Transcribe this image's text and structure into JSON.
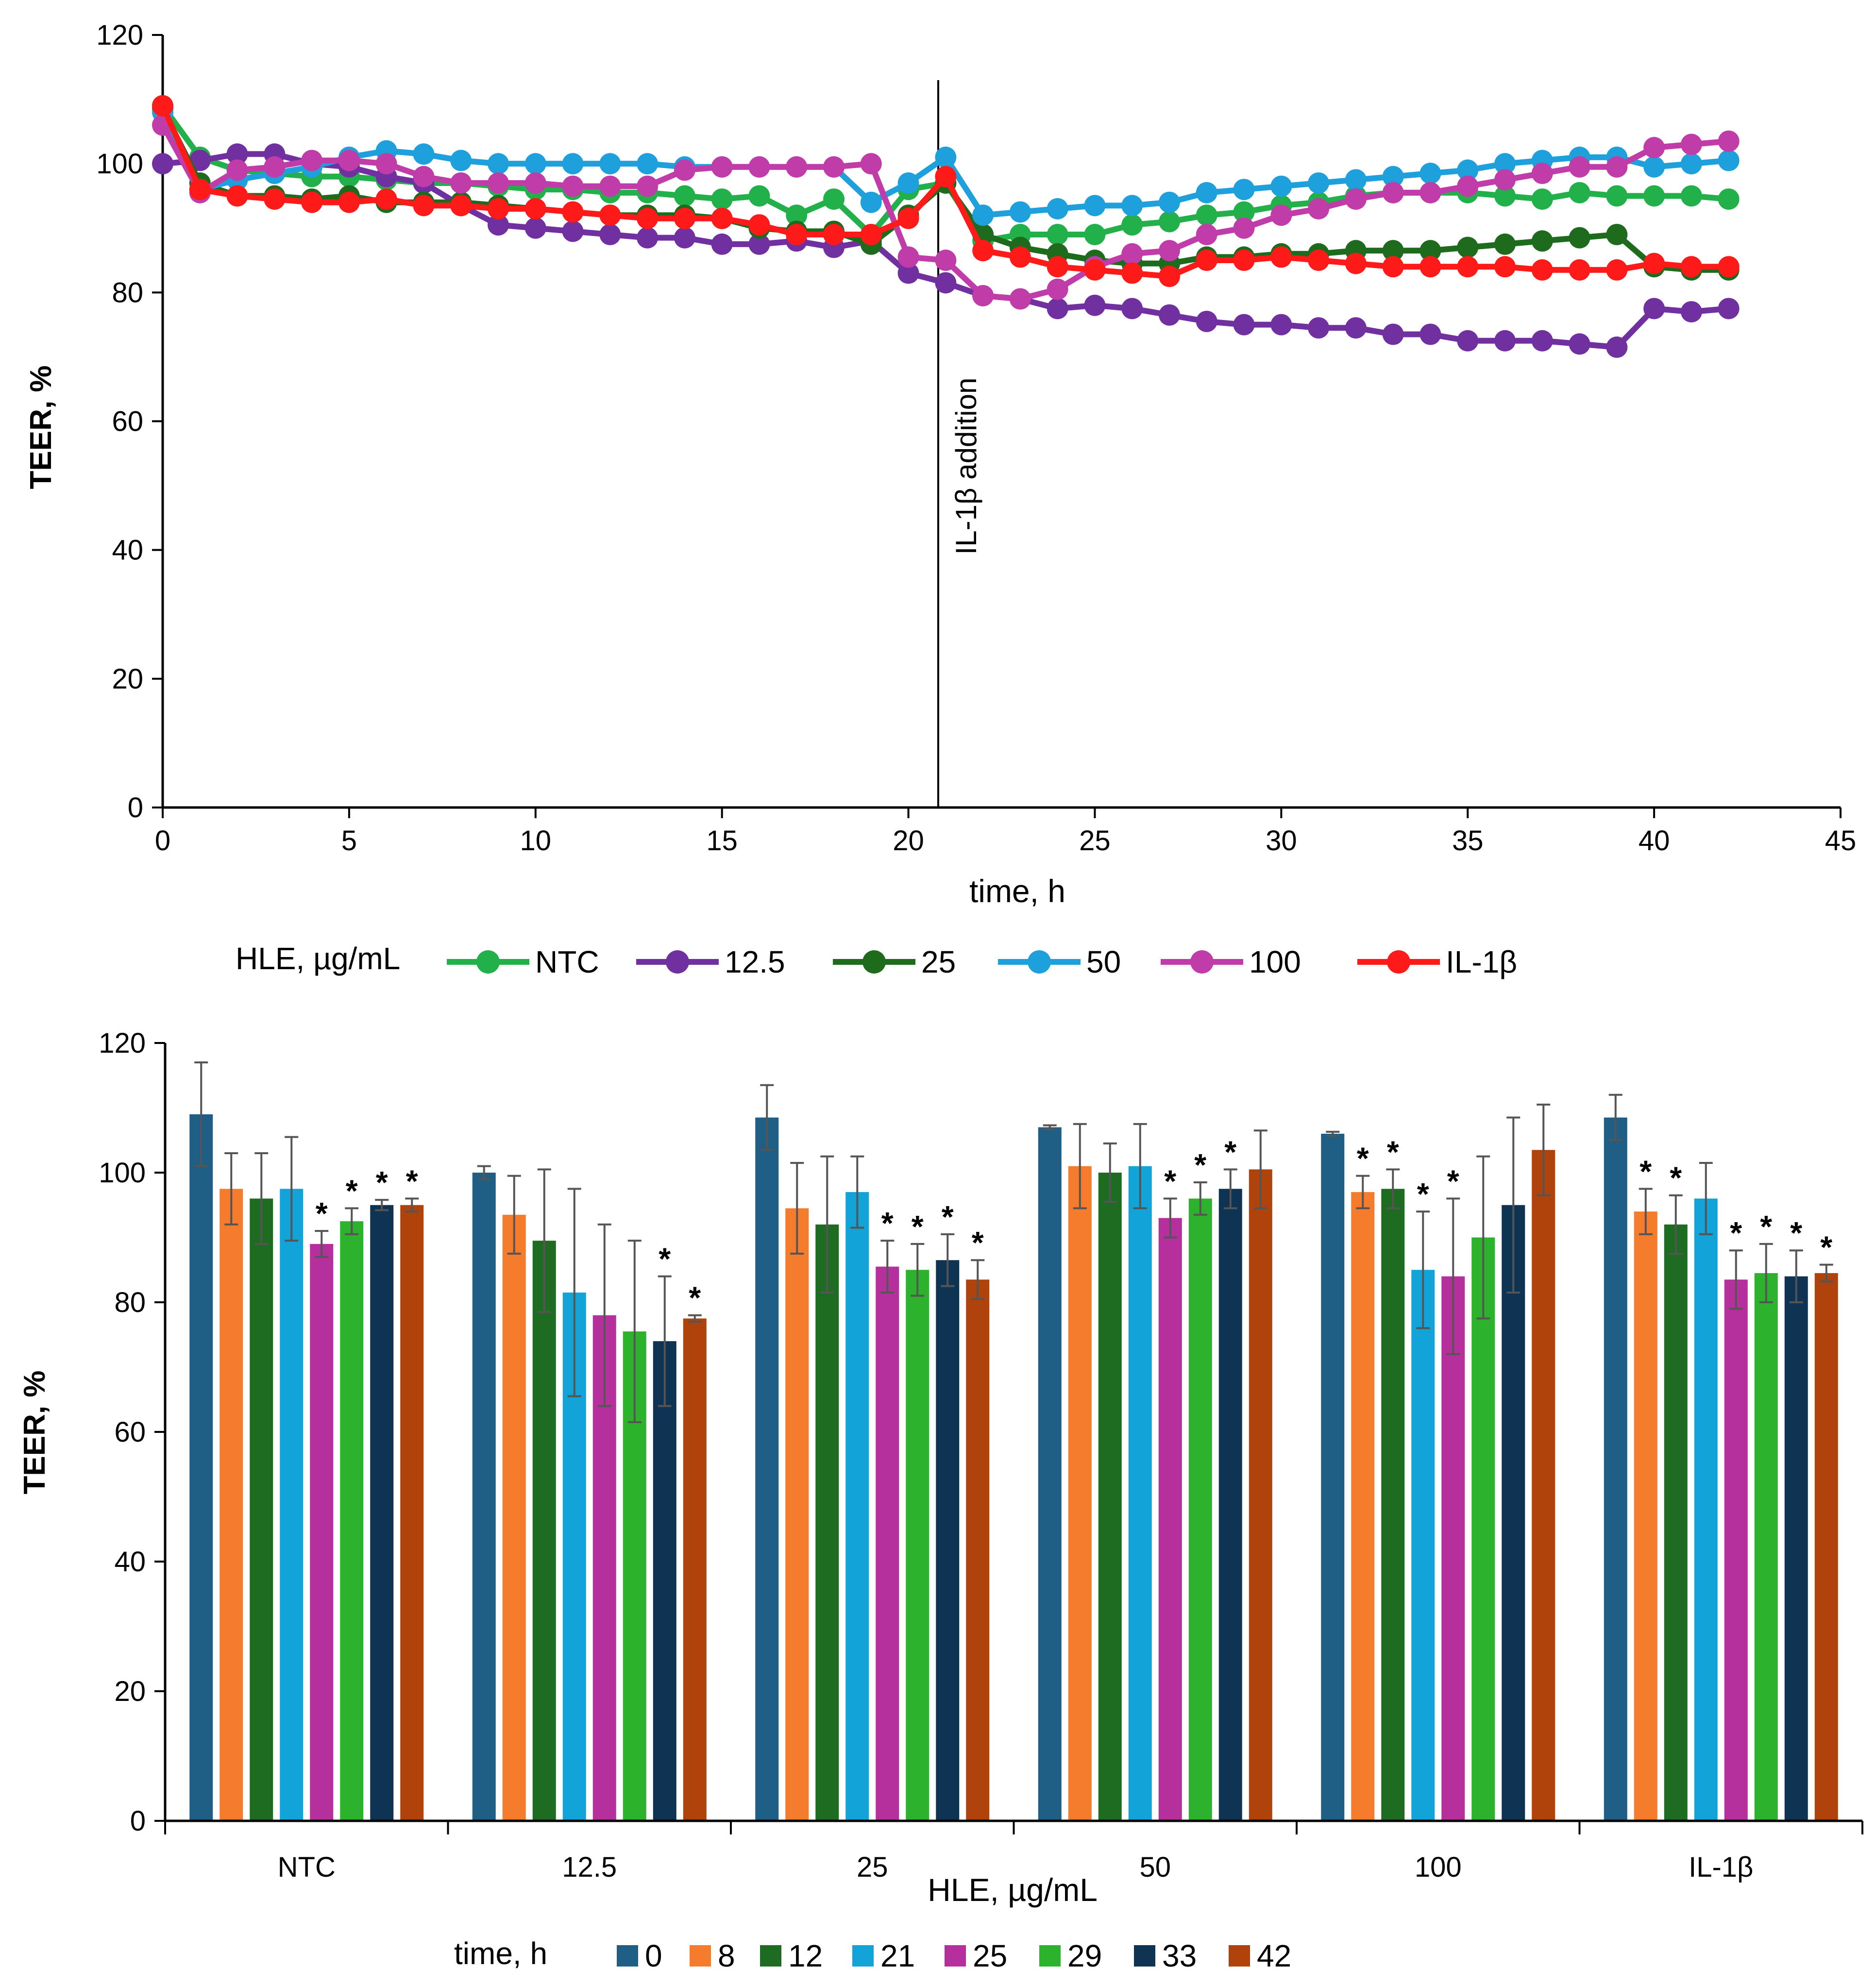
{
  "colors": {
    "NTC": "#22b04b",
    "12.5": "#7030a0",
    "25": "#1e6b1e",
    "50": "#1ea0dc",
    "100": "#c03ca8",
    "IL-1β": "#ff1a1a",
    "t0": "#1f5f86",
    "t8": "#f57c2c",
    "t12": "#1e6b22",
    "t21": "#12a3d8",
    "t25": "#b5309c",
    "t29": "#2cb22c",
    "t33": "#0f3352",
    "t42": "#b0420c",
    "axis": "#000000",
    "error": "#555555"
  },
  "chart_data": [
    {
      "type": "line",
      "title": "",
      "xlabel": "time, h",
      "ylabel": "TEER, %",
      "xlim": [
        0,
        45
      ],
      "ylim": [
        0,
        120
      ],
      "xticks": [
        "0",
        "5",
        "10",
        "15",
        "20",
        "25",
        "30",
        "35",
        "40",
        "45"
      ],
      "yticks": [
        "0",
        "20",
        "40",
        "60",
        "80",
        "100",
        "120"
      ],
      "legend_title": "HLE, µg/mL",
      "legend_position": "bottom",
      "annotation": {
        "text": "IL-1β addition",
        "x": 20.8
      },
      "x": [
        0,
        1,
        2,
        3,
        4,
        5,
        6,
        7,
        8,
        9,
        10,
        11,
        12,
        13,
        14,
        15,
        16,
        17,
        18,
        19,
        20,
        21,
        22,
        23,
        24,
        25,
        26,
        27,
        28,
        29,
        30,
        31,
        32,
        33,
        34,
        35,
        36,
        37,
        38,
        39,
        40,
        41,
        42
      ],
      "series": [
        {
          "name": "NTC",
          "color_key": "NTC",
          "values": [
            109,
            101,
            99,
            98.5,
            98,
            98,
            97.5,
            97,
            97,
            96.5,
            96,
            96,
            95.5,
            95.5,
            95,
            94.5,
            95,
            92,
            94.5,
            89,
            96,
            97,
            88,
            89,
            89,
            89,
            90.5,
            91,
            92,
            92.5,
            93.5,
            94,
            95,
            95.5,
            95.5,
            95.5,
            95,
            94.5,
            95.5,
            95,
            95,
            95,
            94.5
          ]
        },
        {
          "name": "12.5",
          "color_key": "12.5",
          "values": [
            100,
            100.5,
            101.5,
            101.5,
            100,
            99.5,
            98,
            97,
            93.5,
            90.5,
            90,
            89.5,
            89,
            88.5,
            88.5,
            87.5,
            87.5,
            88,
            87,
            88,
            83,
            81.5,
            79.5,
            79,
            77.5,
            78,
            77.5,
            76.5,
            75.5,
            75,
            75,
            74.5,
            74.5,
            73.5,
            73.5,
            72.5,
            72.5,
            72.5,
            72,
            71.5,
            77.5,
            77,
            77.5
          ]
        },
        {
          "name": "25",
          "color_key": "25",
          "values": [
            108.5,
            97,
            95,
            95,
            94.5,
            95,
            94,
            94,
            94,
            93.5,
            93,
            92.5,
            92,
            92,
            92,
            91.5,
            90,
            89.5,
            89.5,
            87.5,
            92,
            97,
            89,
            87,
            86,
            85,
            84.5,
            84.5,
            85.5,
            85.5,
            86,
            86,
            86.5,
            86.5,
            86.5,
            87,
            87.5,
            88,
            88.5,
            89,
            84,
            83.5,
            83.5
          ]
        },
        {
          "name": "50",
          "color_key": "50",
          "values": [
            108,
            96,
            97.5,
            98.5,
            99.5,
            101,
            102,
            101.5,
            100.5,
            100,
            100,
            100,
            100,
            100,
            99.5,
            99.5,
            99.5,
            99.5,
            99.5,
            94,
            97,
            101,
            92,
            92.5,
            93,
            93.5,
            93.5,
            94,
            95.5,
            96,
            96.5,
            97,
            97.5,
            98,
            98.5,
            99,
            100,
            100.5,
            101,
            101,
            99.5,
            100,
            100.5
          ]
        },
        {
          "name": "100",
          "color_key": "100",
          "values": [
            106,
            95.5,
            99,
            99.5,
            100.5,
            100.5,
            100,
            98,
            97,
            97,
            97,
            96.5,
            96.5,
            96.5,
            99,
            99.5,
            99.5,
            99.5,
            99.5,
            100,
            85.5,
            85,
            79.5,
            79,
            80.5,
            84,
            86,
            86.5,
            89,
            90,
            92,
            93,
            94.5,
            95.5,
            95.5,
            96.5,
            97.5,
            98.5,
            99.5,
            99.5,
            102.5,
            103,
            103.5
          ]
        },
        {
          "name": "IL-1β",
          "color_key": "IL-1β",
          "values": [
            109,
            96,
            95,
            94.5,
            94,
            94,
            94.5,
            93.5,
            93.5,
            93,
            93,
            92.5,
            92,
            91.5,
            91.5,
            91.5,
            90.5,
            89,
            89,
            89,
            91.5,
            98,
            86.5,
            85.5,
            84,
            83.5,
            83,
            82.5,
            85,
            85,
            85.5,
            85,
            84.5,
            84,
            84,
            84,
            84,
            83.5,
            83.5,
            83.5,
            84.5,
            84,
            84
          ]
        }
      ]
    },
    {
      "type": "bar",
      "title": "",
      "xlabel": "HLE, µg/mL",
      "ylabel": "TEER, %",
      "ylim": [
        0,
        120
      ],
      "yticks": [
        "0",
        "20",
        "40",
        "60",
        "80",
        "100",
        "120"
      ],
      "legend_title": "time, h",
      "legend_position": "bottom",
      "categories": [
        "NTC",
        "12.5",
        "25",
        "50",
        "100",
        "IL-1β"
      ],
      "series": [
        {
          "name": "0",
          "color_key": "t0",
          "values": [
            109,
            100,
            108.5,
            107,
            106,
            108.5
          ],
          "errors": [
            8,
            1,
            5,
            0.3,
            0.3,
            3.5
          ],
          "significant": [
            false,
            false,
            false,
            false,
            false,
            false
          ]
        },
        {
          "name": "8",
          "color_key": "t8",
          "values": [
            97.5,
            93.5,
            94.5,
            101,
            97,
            94
          ],
          "errors": [
            5.5,
            6,
            7,
            6.5,
            2.5,
            3.5
          ],
          "significant": [
            false,
            false,
            false,
            false,
            true,
            true
          ]
        },
        {
          "name": "12",
          "color_key": "t12",
          "values": [
            96,
            89.5,
            92,
            100,
            97.5,
            92
          ],
          "errors": [
            7,
            11,
            10.5,
            4.5,
            3,
            4.5
          ],
          "significant": [
            false,
            false,
            false,
            false,
            true,
            true
          ]
        },
        {
          "name": "21",
          "color_key": "t21",
          "values": [
            97.5,
            81.5,
            97,
            101,
            85,
            96
          ],
          "errors": [
            8,
            16,
            5.5,
            6.5,
            9,
            5.5
          ],
          "significant": [
            false,
            false,
            false,
            false,
            true,
            false
          ]
        },
        {
          "name": "25",
          "color_key": "t25",
          "values": [
            89,
            78,
            85.5,
            93,
            84,
            83.5
          ],
          "errors": [
            2,
            14,
            4,
            3,
            12,
            4.5
          ],
          "significant": [
            true,
            false,
            true,
            true,
            true,
            true
          ]
        },
        {
          "name": "29",
          "color_key": "t29",
          "values": [
            92.5,
            75.5,
            85,
            96,
            90,
            84.5
          ],
          "errors": [
            2,
            14,
            4,
            2.5,
            12.5,
            4.5
          ],
          "significant": [
            true,
            false,
            true,
            true,
            false,
            true
          ]
        },
        {
          "name": "33",
          "color_key": "t33",
          "values": [
            95,
            74,
            86.5,
            97.5,
            95,
            84
          ],
          "errors": [
            0.8,
            10,
            4,
            3,
            13.5,
            4
          ],
          "significant": [
            true,
            true,
            true,
            true,
            false,
            true
          ]
        },
        {
          "name": "42",
          "color_key": "t42",
          "values": [
            95,
            77.5,
            83.5,
            100.5,
            103.5,
            84.5
          ],
          "errors": [
            1,
            0.5,
            3,
            6,
            7,
            1.3
          ],
          "significant": [
            true,
            true,
            true,
            false,
            false,
            true
          ]
        }
      ]
    }
  ]
}
